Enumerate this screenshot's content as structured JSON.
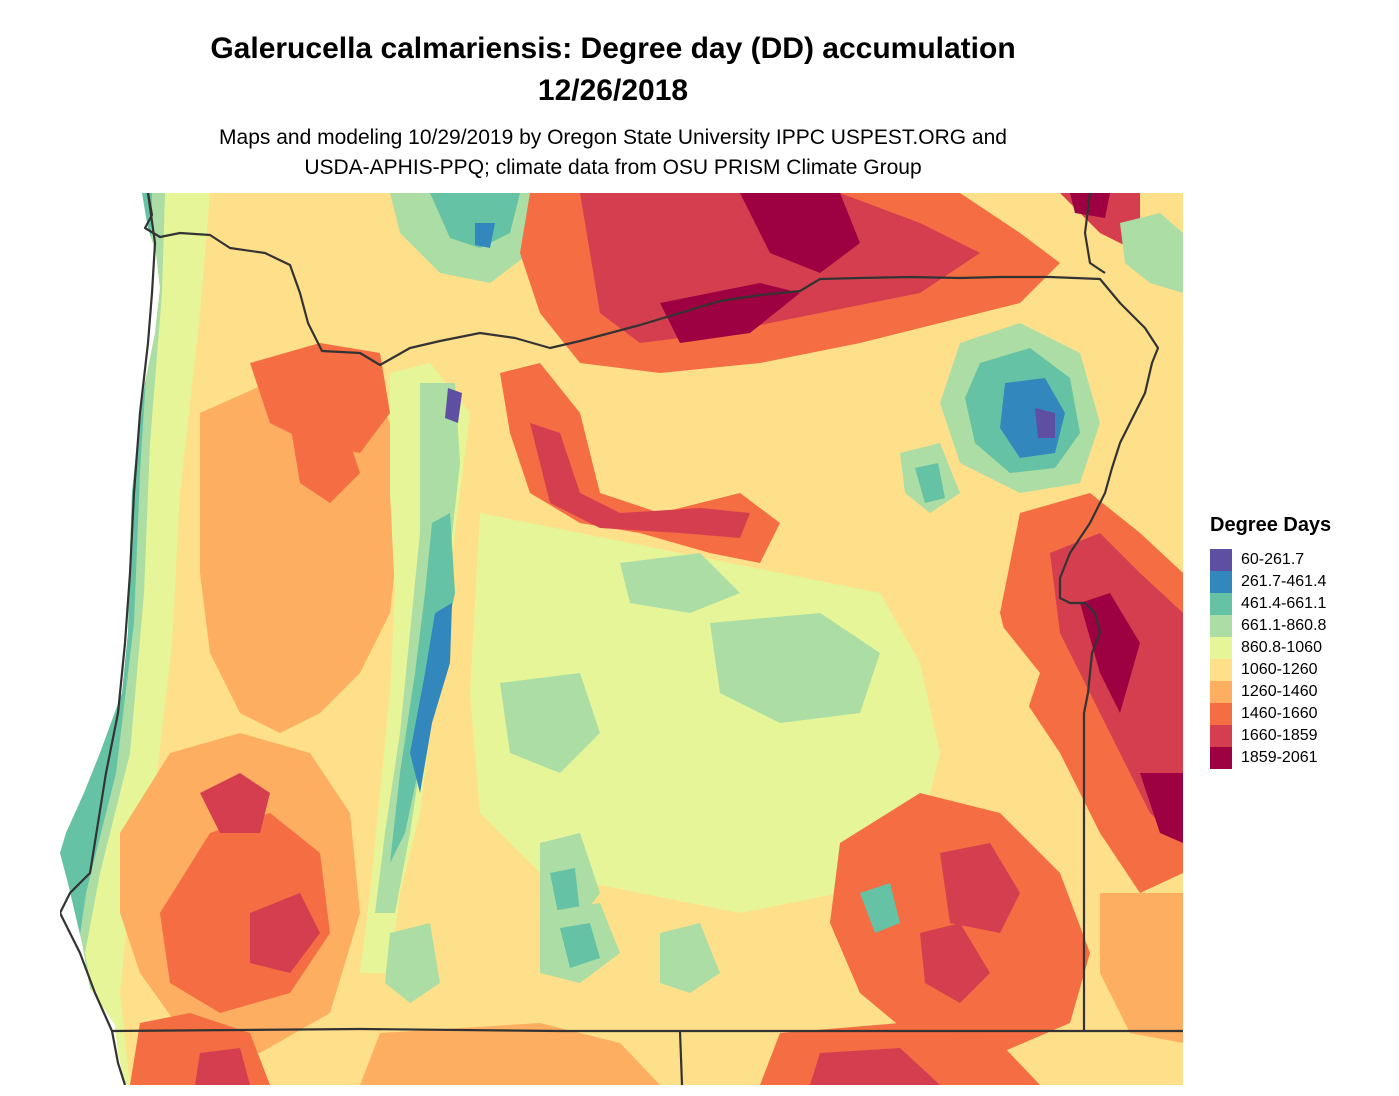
{
  "header": {
    "title_line1": "Galerucella calmariensis: Degree day (DD) accumulation",
    "title_line2": "12/26/2018",
    "subtitle_line1": "Maps and modeling 10/29/2019 by Oregon State University IPPC USPEST.ORG and",
    "subtitle_line2": "USDA-APHIS-PPQ; climate data from OSU PRISM Climate Group"
  },
  "legend": {
    "title": "Degree Days",
    "items": [
      {
        "label": "60-261.7",
        "color": "#5E4FA2"
      },
      {
        "label": "261.7-461.4",
        "color": "#3288BD"
      },
      {
        "label": "461.4-661.1",
        "color": "#66C2A5"
      },
      {
        "label": "661.1-860.8",
        "color": "#ABDDA4"
      },
      {
        "label": "860.8-1060",
        "color": "#E6F598"
      },
      {
        "label": "1060-1260",
        "color": "#FEE08B"
      },
      {
        "label": "1260-1460",
        "color": "#FDAE61"
      },
      {
        "label": "1460-1660",
        "color": "#F46D43"
      },
      {
        "label": "1660-1859",
        "color": "#D53E4F"
      },
      {
        "label": "1859-2061",
        "color": "#9E0142"
      }
    ]
  },
  "map": {
    "region": "Oregon",
    "boundary_color": "#333333",
    "background_color": "#ffffff"
  }
}
